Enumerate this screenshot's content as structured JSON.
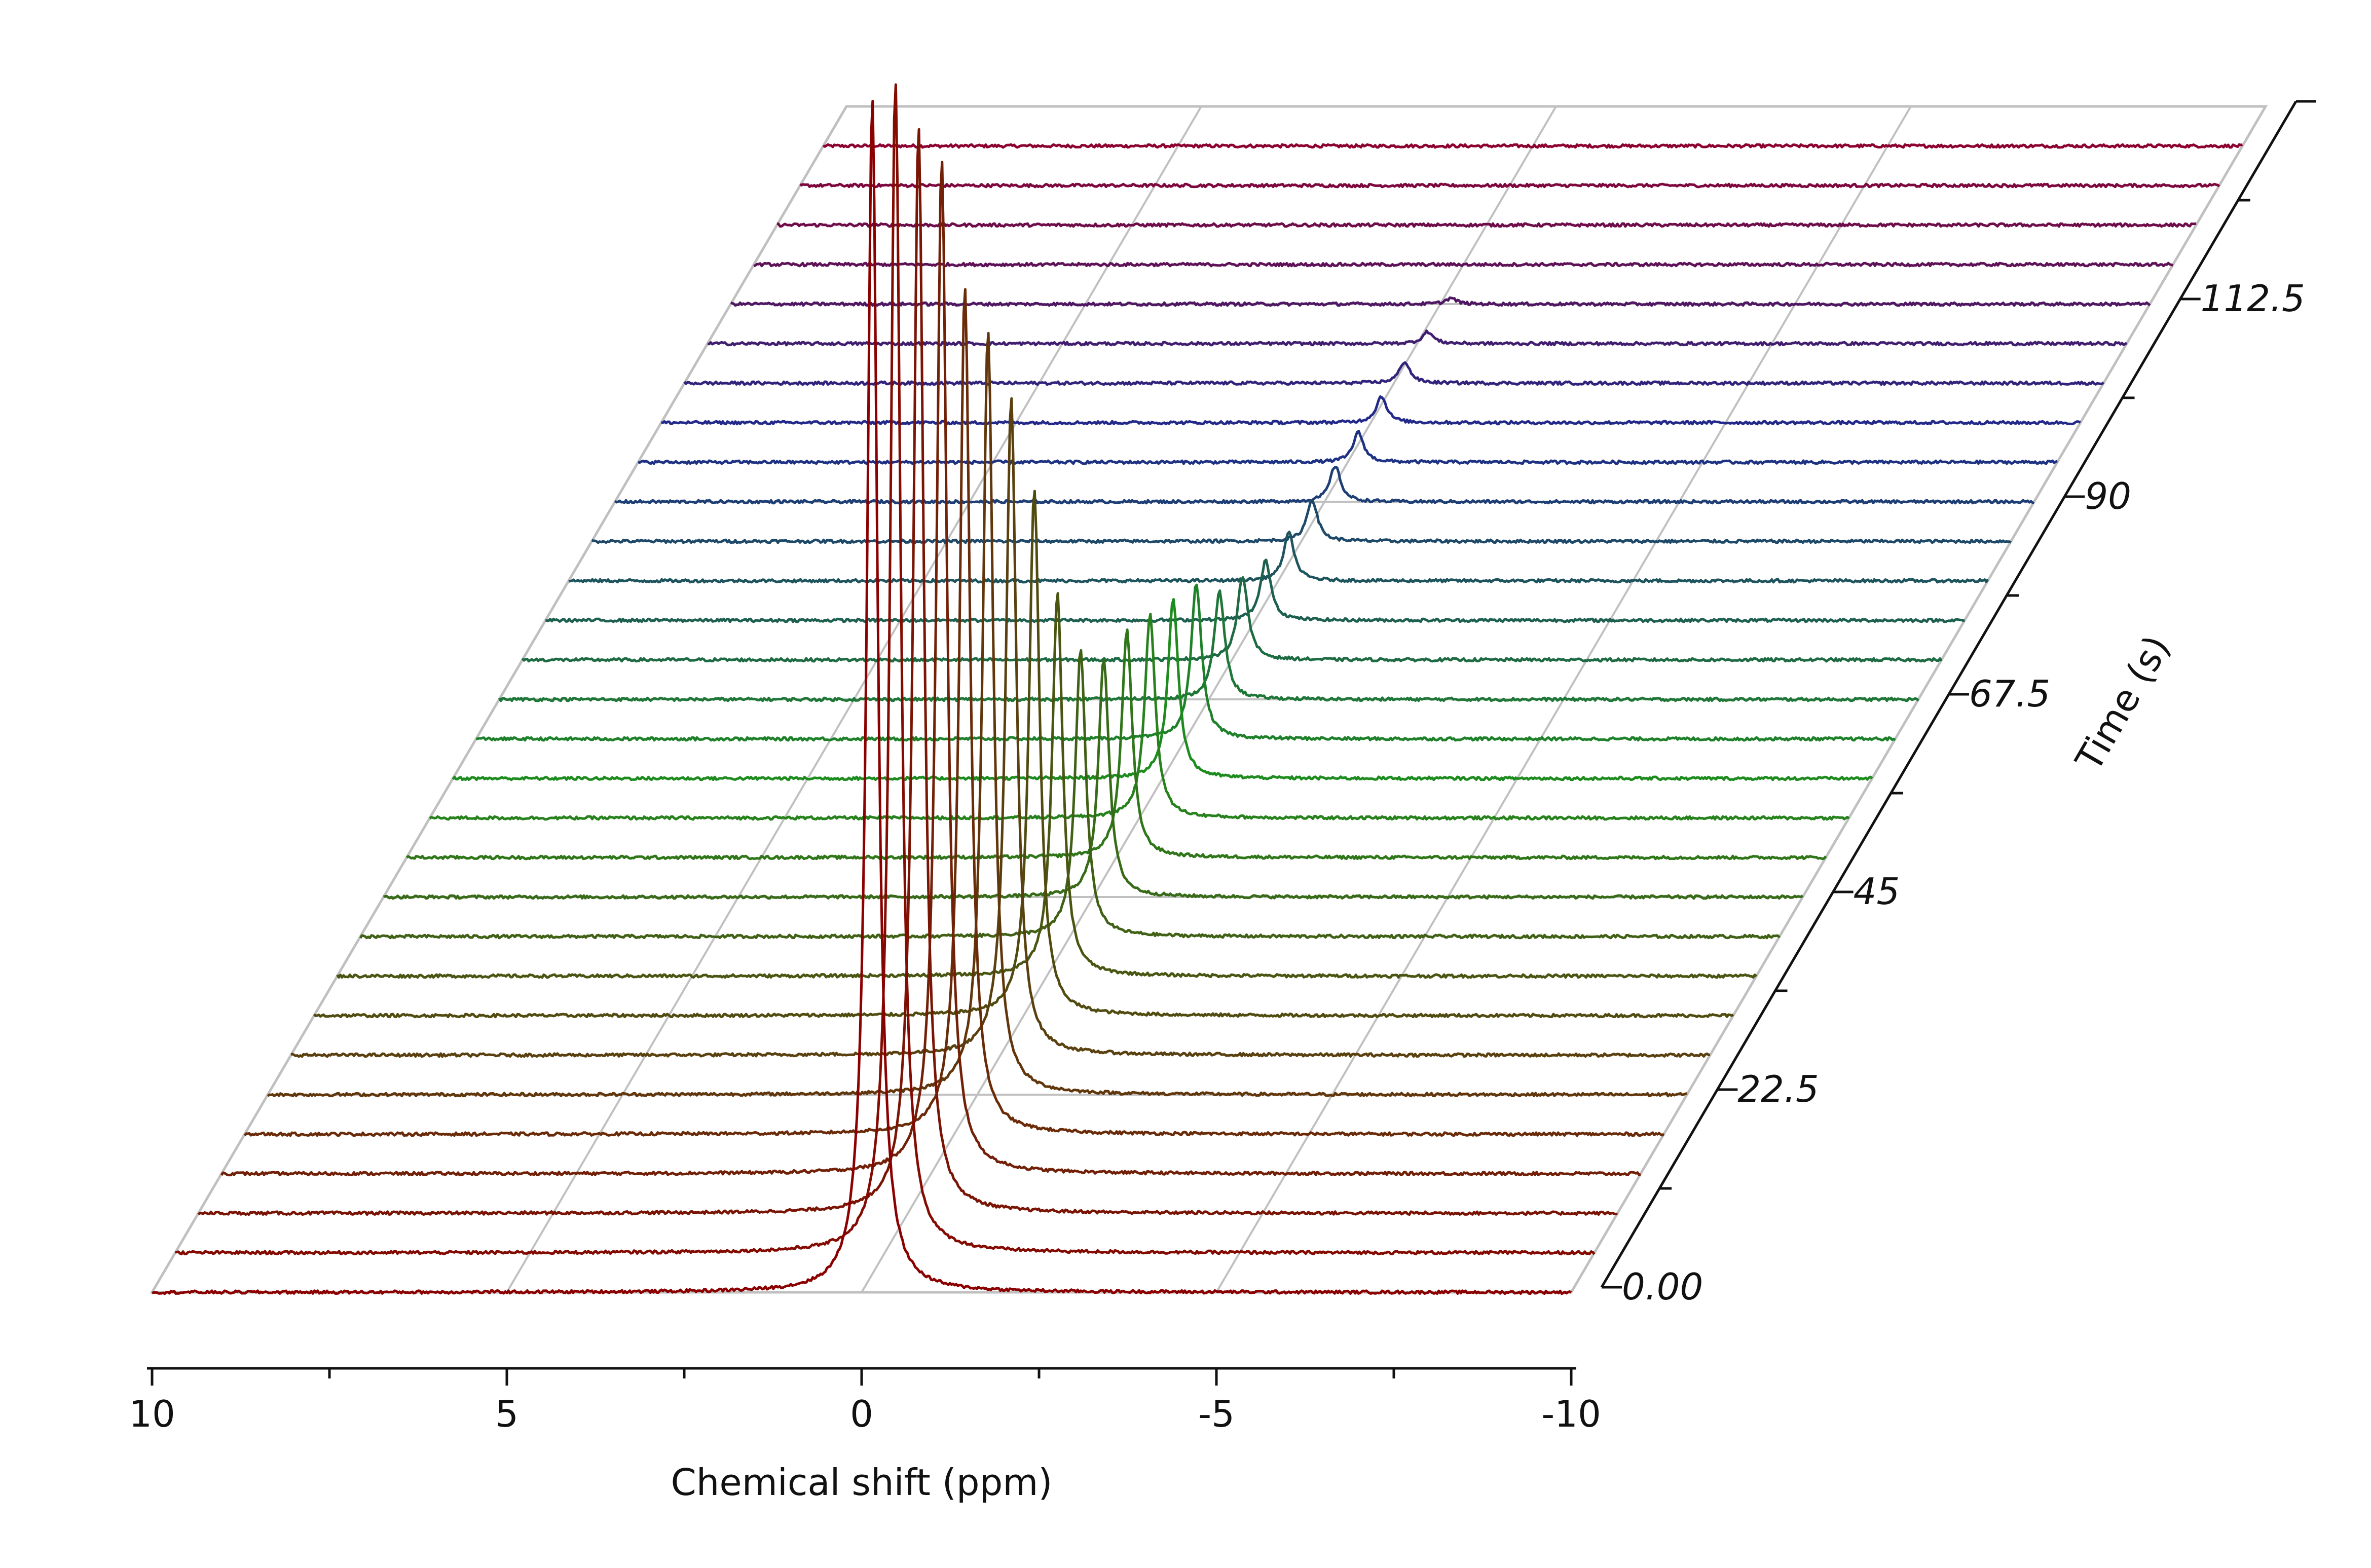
{
  "chart_data": {
    "type": "line",
    "subtype": "waterfall-3d-stacked-spectra",
    "title": "",
    "xlabel": "Chemical shift (ppm)",
    "ylabel": "Time (s)",
    "xlim": [
      10,
      -10
    ],
    "ylim": [
      0,
      135
    ],
    "x_ticks": [
      "10",
      "5",
      "0",
      "-5",
      "-10"
    ],
    "y_ticks": [
      "0.00",
      "22.5",
      "45",
      "67.5",
      "90",
      "112.5"
    ],
    "x_tick_values": [
      10,
      5,
      0,
      -5,
      -10
    ],
    "y_tick_values": [
      0,
      22.5,
      45,
      67.5,
      90,
      112.5
    ],
    "grid": true,
    "legend": "none",
    "spectrum_count": 30,
    "time_step_s": 4.5,
    "colors": {
      "start": "#8b0000",
      "middle": "#1e8c1e",
      "late": "#1e2a8c",
      "end": "#8b0030",
      "frame": "#c0c0c0"
    },
    "series": [
      {
        "time": 0.0,
        "peaks": [
          {
            "shift": -0.15,
            "height": 1.0
          }
        ]
      },
      {
        "time": 4.5,
        "peaks": [
          {
            "shift": -0.15,
            "height": 0.98
          }
        ]
      },
      {
        "time": 9.0,
        "peaks": [
          {
            "shift": -0.15,
            "height": 0.91
          }
        ]
      },
      {
        "time": 13.5,
        "peaks": [
          {
            "shift": -0.15,
            "height": 0.85
          }
        ]
      },
      {
        "time": 18.0,
        "peaks": [
          {
            "shift": -0.15,
            "height": 0.71
          }
        ]
      },
      {
        "time": 22.5,
        "peaks": [
          {
            "shift": -0.15,
            "height": 0.64
          }
        ]
      },
      {
        "time": 27.0,
        "peaks": [
          {
            "shift": -0.15,
            "height": 0.55
          }
        ]
      },
      {
        "time": 31.5,
        "peaks": [
          {
            "shift": -0.15,
            "height": 0.44
          }
        ]
      },
      {
        "time": 36.0,
        "peaks": [
          {
            "shift": -0.15,
            "height": 0.32
          }
        ]
      },
      {
        "time": 40.5,
        "peaks": [
          {
            "shift": -0.15,
            "height": 0.24
          }
        ]
      },
      {
        "time": 45.0,
        "peaks": [
          {
            "shift": -0.15,
            "height": 0.2
          }
        ]
      },
      {
        "time": 49.5,
        "peaks": [
          {
            "shift": -0.15,
            "height": 0.19
          }
        ]
      },
      {
        "time": 54.0,
        "peaks": [
          {
            "shift": -0.15,
            "height": 0.17
          }
        ]
      },
      {
        "time": 58.5,
        "peaks": [
          {
            "shift": -0.15,
            "height": 0.15
          }
        ]
      },
      {
        "time": 63.0,
        "peaks": [
          {
            "shift": -0.15,
            "height": 0.13
          }
        ]
      },
      {
        "time": 67.5,
        "peaks": [
          {
            "shift": -0.15,
            "height": 0.09
          }
        ]
      },
      {
        "time": 72.0,
        "peaks": [
          {
            "shift": -0.15,
            "height": 0.07
          }
        ]
      },
      {
        "time": 76.5,
        "peaks": [
          {
            "shift": -0.15,
            "height": 0.05
          }
        ]
      },
      {
        "time": 81.0,
        "peaks": [
          {
            "shift": -0.15,
            "height": 0.04
          }
        ]
      },
      {
        "time": 85.5,
        "peaks": [
          {
            "shift": -0.15,
            "height": 0.035
          }
        ]
      },
      {
        "time": 90.0,
        "peaks": [
          {
            "shift": -0.15,
            "height": 0.03
          }
        ]
      },
      {
        "time": 94.5,
        "peaks": [
          {
            "shift": -0.15,
            "height": 0.025
          }
        ]
      },
      {
        "time": 99.0,
        "peaks": [
          {
            "shift": -0.15,
            "height": 0.022
          }
        ]
      },
      {
        "time": 103.5,
        "peaks": [
          {
            "shift": -0.15,
            "height": 0.018
          }
        ]
      },
      {
        "time": 108.0,
        "peaks": [
          {
            "shift": -0.15,
            "height": 0.01
          }
        ]
      },
      {
        "time": 112.5,
        "peaks": [
          {
            "shift": -0.15,
            "height": 0.005
          }
        ]
      },
      {
        "time": 117.0,
        "peaks": [
          {
            "shift": -0.15,
            "height": 0.0
          }
        ]
      },
      {
        "time": 121.5,
        "peaks": [
          {
            "shift": -0.15,
            "height": 0.0
          }
        ]
      },
      {
        "time": 126.0,
        "peaks": [
          {
            "shift": -0.15,
            "height": 0.0
          }
        ]
      },
      {
        "time": 130.5,
        "peaks": [
          {
            "shift": -0.15,
            "height": 0.0
          }
        ]
      }
    ]
  }
}
